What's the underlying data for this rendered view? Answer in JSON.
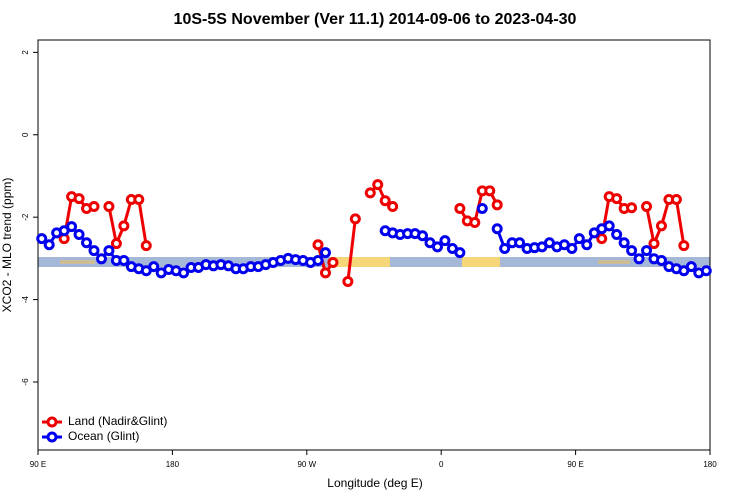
{
  "chart_data": {
    "type": "line",
    "title": "10S-5S November (Ver 11.1)   2014-09-06 to 2023-04-30",
    "x_label": "Longitude (deg E)",
    "y_label": "XCO2 - MLO trend (ppm)",
    "xlim": [
      90,
      540
    ],
    "ylim": [
      -7.65,
      2.3
    ],
    "xticks": [
      {
        "value": 90,
        "label": "90 E"
      },
      {
        "value": 180,
        "label": "180"
      },
      {
        "value": 270,
        "label": "90 W"
      },
      {
        "value": 360,
        "label": "0"
      },
      {
        "value": 450,
        "label": "90 E"
      },
      {
        "value": 540,
        "label": "180"
      }
    ],
    "yticks": [
      2,
      0,
      -2,
      -4,
      -6
    ],
    "legend": "bottom-left",
    "x": [
      92.5,
      97.5,
      102.5,
      107.5,
      112.5,
      117.5,
      122.5,
      127.5,
      132.5,
      137.5,
      142.5,
      147.5,
      152.5,
      157.5,
      162.5,
      167.5,
      172.5,
      177.5,
      182.5,
      187.5,
      192.5,
      197.5,
      202.5,
      207.5,
      212.5,
      217.5,
      222.5,
      227.5,
      232.5,
      237.5,
      242.5,
      247.5,
      252.5,
      257.5,
      262.5,
      267.5,
      272.5,
      277.5,
      282.5,
      287.5,
      292.5,
      297.5,
      302.5,
      307.5,
      312.5,
      317.5,
      322.5,
      327.5,
      332.5,
      337.5,
      342.5,
      347.5,
      352.5,
      357.5,
      362.5,
      367.5,
      372.5,
      377.5,
      382.5,
      387.5,
      392.5,
      397.5,
      402.5,
      407.5,
      412.5,
      417.5,
      422.5,
      427.5,
      432.5,
      437.5,
      442.5,
      447.5,
      452.5,
      457.5,
      462.5,
      467.5,
      472.5,
      477.5,
      482.5,
      487.5,
      492.5,
      497.5,
      502.5,
      507.5,
      512.5,
      517.5,
      522.5,
      527.5,
      532.5,
      537.5
    ],
    "series": [
      {
        "name": "Land (Nadir&Glint)",
        "color": "#ee0000",
        "values": [
          null,
          null,
          null,
          -2.52,
          -1.5,
          -1.55,
          -1.79,
          -1.74,
          null,
          -1.74,
          -2.64,
          -2.21,
          -1.57,
          -1.57,
          -2.69,
          null,
          null,
          null,
          null,
          null,
          null,
          null,
          null,
          null,
          null,
          null,
          null,
          null,
          null,
          null,
          null,
          null,
          null,
          null,
          null,
          null,
          null,
          -2.67,
          -3.35,
          -3.1,
          null,
          -3.56,
          -2.04,
          null,
          -1.41,
          -1.21,
          -1.6,
          -1.74,
          null,
          null,
          null,
          null,
          null,
          null,
          null,
          null,
          -1.79,
          -2.09,
          -2.13,
          -1.36,
          -1.36,
          -1.7,
          null,
          null,
          null,
          null,
          null,
          null,
          null,
          null,
          null,
          null,
          null,
          null,
          null,
          -2.52,
          -1.5,
          -1.55,
          -1.79,
          -1.77,
          null,
          -1.74,
          -2.64,
          -2.21,
          -1.57,
          -1.57,
          -2.69,
          null,
          null,
          null
        ]
      },
      {
        "name": "Ocean (Glint)",
        "color": "#0000ee",
        "values": [
          -2.52,
          -2.67,
          -2.38,
          -2.33,
          -2.23,
          -2.42,
          -2.62,
          -2.81,
          -3.01,
          -2.81,
          -3.05,
          -3.05,
          -3.2,
          -3.25,
          -3.3,
          -3.2,
          -3.35,
          -3.27,
          -3.3,
          -3.35,
          -3.22,
          -3.22,
          -3.15,
          -3.18,
          -3.15,
          -3.18,
          -3.25,
          -3.25,
          -3.2,
          -3.2,
          -3.15,
          -3.1,
          -3.05,
          -3.0,
          -3.03,
          -3.05,
          -3.1,
          -3.05,
          -2.86,
          null,
          null,
          null,
          null,
          null,
          null,
          null,
          -2.33,
          -2.38,
          -2.42,
          -2.4,
          -2.4,
          -2.45,
          -2.62,
          -2.72,
          -2.57,
          -2.76,
          -2.86,
          null,
          null,
          -1.79,
          null,
          -2.28,
          -2.76,
          -2.62,
          -2.62,
          -2.76,
          -2.74,
          -2.72,
          -2.62,
          -2.72,
          -2.67,
          -2.76,
          -2.52,
          -2.67,
          -2.38,
          -2.28,
          -2.21,
          -2.42,
          -2.62,
          -2.81,
          -3.01,
          -2.81,
          -3.01,
          -3.05,
          -3.2,
          -3.25,
          -3.3,
          -3.2,
          -3.35,
          -3.3
        ]
      }
    ]
  }
}
